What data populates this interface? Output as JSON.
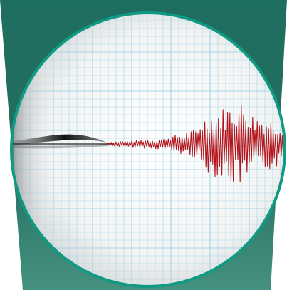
{
  "image": {
    "subject": "seismograph",
    "colors": {
      "banner_top": "#1e6e5f",
      "banner_bottom": "#3d8a78",
      "ring": "#109a84",
      "paper": "#f4f6f6",
      "grid_line": "#a8d3e6",
      "trace": "#b4141b",
      "stylus": "#151515"
    }
  }
}
